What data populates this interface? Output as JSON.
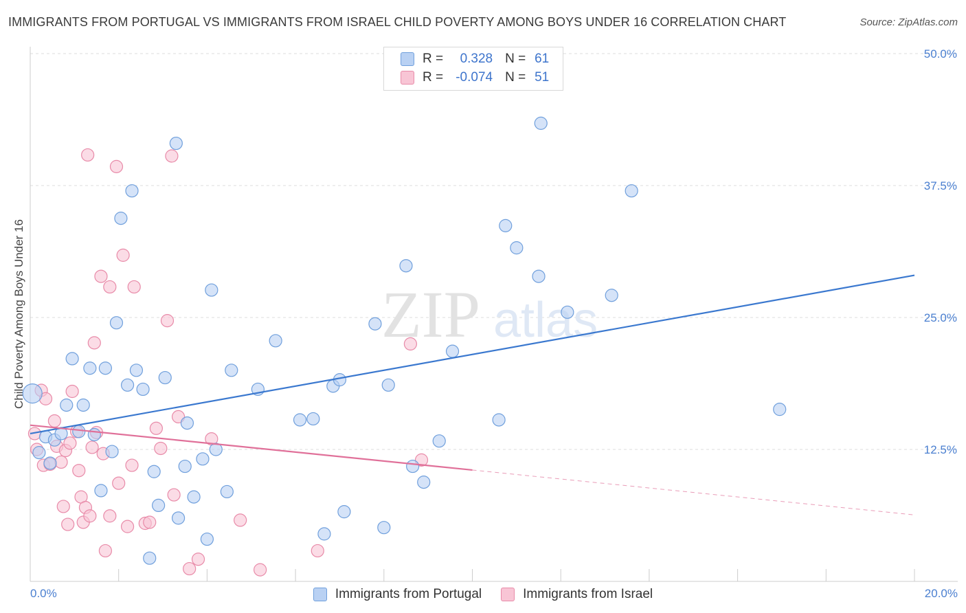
{
  "title": "IMMIGRANTS FROM PORTUGAL VS IMMIGRANTS FROM ISRAEL CHILD POVERTY AMONG BOYS UNDER 16 CORRELATION CHART",
  "source": "Source: ZipAtlas.com",
  "watermark": {
    "zip": "ZIP",
    "atlas": "atlas"
  },
  "legend_top": {
    "rows": [
      {
        "r_label": "R =",
        "r_value": "0.328",
        "n_label": "N =",
        "n_value": "61"
      },
      {
        "r_label": "R =",
        "r_value": "-0.074",
        "n_label": "N =",
        "n_value": "51"
      }
    ]
  },
  "colors": {
    "portugal_fill": "#b9d1f3",
    "portugal_stroke": "#6f9fdc",
    "portugal_line": "#3a78cf",
    "israel_fill": "#f8c5d5",
    "israel_stroke": "#e88aa8",
    "israel_line": "#e07099",
    "grid": "#dddddd",
    "tick_text": "#4a7fd0"
  },
  "chart_data": {
    "type": "scatter",
    "title": "IMMIGRANTS FROM PORTUGAL VS IMMIGRANTS FROM ISRAEL CHILD POVERTY AMONG BOYS UNDER 16 CORRELATION CHART",
    "xlabel": "",
    "ylabel": "Child Poverty Among Boys Under 16",
    "xlim": [
      0,
      20
    ],
    "ylim": [
      0,
      50
    ],
    "x_tick_labels": [
      "0.0%",
      "20.0%"
    ],
    "y_ticks": [
      12.5,
      25.0,
      37.5,
      50.0
    ],
    "y_tick_labels": [
      "12.5%",
      "25.0%",
      "37.5%",
      "50.0%"
    ],
    "grid": true,
    "legend": "top-center",
    "series": [
      {
        "name": "Immigrants from Portugal",
        "R": 0.328,
        "N": 61,
        "trend": {
          "x": [
            0,
            20
          ],
          "y": [
            14.0,
            29.0
          ],
          "dashed_from_x": null
        },
        "points": [
          [
            0.05,
            17.8
          ],
          [
            0.2,
            12.2
          ],
          [
            0.35,
            13.7
          ],
          [
            0.45,
            11.2
          ],
          [
            0.55,
            13.4
          ],
          [
            0.7,
            14.0
          ],
          [
            0.82,
            16.7
          ],
          [
            0.95,
            21.1
          ],
          [
            1.1,
            14.2
          ],
          [
            1.2,
            16.7
          ],
          [
            1.35,
            20.2
          ],
          [
            1.45,
            13.9
          ],
          [
            1.6,
            8.6
          ],
          [
            1.7,
            20.2
          ],
          [
            1.85,
            12.3
          ],
          [
            1.95,
            24.5
          ],
          [
            2.05,
            34.4
          ],
          [
            2.2,
            18.6
          ],
          [
            2.3,
            37.0
          ],
          [
            2.4,
            20.0
          ],
          [
            2.55,
            18.2
          ],
          [
            2.7,
            2.2
          ],
          [
            2.8,
            10.4
          ],
          [
            2.9,
            7.2
          ],
          [
            3.05,
            19.3
          ],
          [
            3.3,
            41.5
          ],
          [
            3.35,
            6.0
          ],
          [
            3.5,
            10.9
          ],
          [
            3.55,
            15.0
          ],
          [
            3.7,
            8.0
          ],
          [
            3.9,
            11.6
          ],
          [
            4.0,
            4.0
          ],
          [
            4.1,
            27.6
          ],
          [
            4.2,
            12.5
          ],
          [
            4.45,
            8.5
          ],
          [
            4.55,
            20.0
          ],
          [
            5.15,
            18.2
          ],
          [
            5.55,
            22.8
          ],
          [
            6.1,
            15.3
          ],
          [
            6.4,
            15.4
          ],
          [
            6.65,
            4.5
          ],
          [
            6.85,
            18.5
          ],
          [
            7.0,
            19.1
          ],
          [
            7.1,
            6.6
          ],
          [
            7.8,
            24.4
          ],
          [
            8.0,
            5.1
          ],
          [
            8.1,
            18.6
          ],
          [
            8.5,
            29.9
          ],
          [
            8.65,
            10.9
          ],
          [
            8.9,
            9.4
          ],
          [
            9.25,
            13.3
          ],
          [
            9.55,
            21.8
          ],
          [
            10.6,
            15.3
          ],
          [
            10.75,
            33.7
          ],
          [
            11.0,
            31.6
          ],
          [
            11.5,
            28.9
          ],
          [
            11.55,
            43.4
          ],
          [
            12.15,
            25.5
          ],
          [
            13.15,
            27.1
          ],
          [
            13.6,
            37.0
          ],
          [
            16.95,
            16.3
          ]
        ],
        "point_radius": [
          14,
          9,
          9,
          9,
          9,
          9,
          9,
          9,
          9,
          9,
          9,
          9,
          9,
          9,
          9,
          9,
          9,
          9,
          9,
          9,
          9,
          9,
          9,
          9,
          9,
          9,
          9,
          9,
          9,
          9,
          9,
          9,
          9,
          9,
          9,
          9,
          9,
          9,
          9,
          9,
          9,
          9,
          9,
          9,
          9,
          9,
          9,
          9,
          9,
          9,
          9,
          9,
          9,
          9,
          9,
          9,
          9,
          9,
          9,
          9,
          9
        ]
      },
      {
        "name": "Immigrants from Israel",
        "R": -0.074,
        "N": 51,
        "trend": {
          "x": [
            0,
            20
          ],
          "y": [
            14.8,
            6.3
          ],
          "dashed_from_x": 10.0
        },
        "points": [
          [
            0.1,
            14.0
          ],
          [
            0.15,
            12.5
          ],
          [
            0.25,
            18.1
          ],
          [
            0.3,
            11.0
          ],
          [
            0.35,
            17.3
          ],
          [
            0.45,
            11.1
          ],
          [
            0.55,
            15.2
          ],
          [
            0.6,
            12.8
          ],
          [
            0.7,
            11.3
          ],
          [
            0.75,
            7.1
          ],
          [
            0.8,
            12.4
          ],
          [
            0.85,
            5.4
          ],
          [
            0.9,
            13.1
          ],
          [
            0.95,
            18.0
          ],
          [
            1.05,
            14.2
          ],
          [
            1.1,
            10.5
          ],
          [
            1.15,
            8.0
          ],
          [
            1.2,
            5.6
          ],
          [
            1.25,
            7.0
          ],
          [
            1.3,
            40.4
          ],
          [
            1.35,
            6.2
          ],
          [
            1.4,
            12.7
          ],
          [
            1.45,
            22.6
          ],
          [
            1.5,
            14.1
          ],
          [
            1.6,
            28.9
          ],
          [
            1.65,
            12.1
          ],
          [
            1.7,
            2.9
          ],
          [
            1.8,
            6.2
          ],
          [
            1.8,
            27.9
          ],
          [
            1.95,
            39.3
          ],
          [
            2.0,
            9.3
          ],
          [
            2.1,
            30.9
          ],
          [
            2.2,
            5.2
          ],
          [
            2.3,
            11.0
          ],
          [
            2.35,
            27.9
          ],
          [
            2.6,
            5.5
          ],
          [
            2.7,
            5.6
          ],
          [
            2.85,
            14.5
          ],
          [
            2.95,
            12.6
          ],
          [
            3.1,
            24.7
          ],
          [
            3.2,
            40.3
          ],
          [
            3.25,
            8.2
          ],
          [
            3.35,
            15.6
          ],
          [
            3.6,
            1.2
          ],
          [
            3.8,
            2.1
          ],
          [
            4.1,
            13.5
          ],
          [
            4.75,
            5.8
          ],
          [
            5.2,
            1.1
          ],
          [
            6.5,
            2.9
          ],
          [
            8.6,
            22.5
          ],
          [
            8.85,
            11.5
          ]
        ],
        "point_radius": [
          9,
          9,
          9,
          9,
          9,
          9,
          9,
          9,
          9,
          9,
          9,
          9,
          9,
          9,
          9,
          9,
          9,
          9,
          9,
          9,
          9,
          9,
          9,
          9,
          9,
          9,
          9,
          9,
          9,
          9,
          9,
          9,
          9,
          9,
          9,
          9,
          9,
          9,
          9,
          9,
          9,
          9,
          9,
          9,
          9,
          9,
          9,
          9,
          9,
          9,
          9
        ]
      }
    ]
  },
  "legend_bottom": {
    "items": [
      {
        "label": "Immigrants from Portugal"
      },
      {
        "label": "Immigrants from Israel"
      }
    ]
  }
}
